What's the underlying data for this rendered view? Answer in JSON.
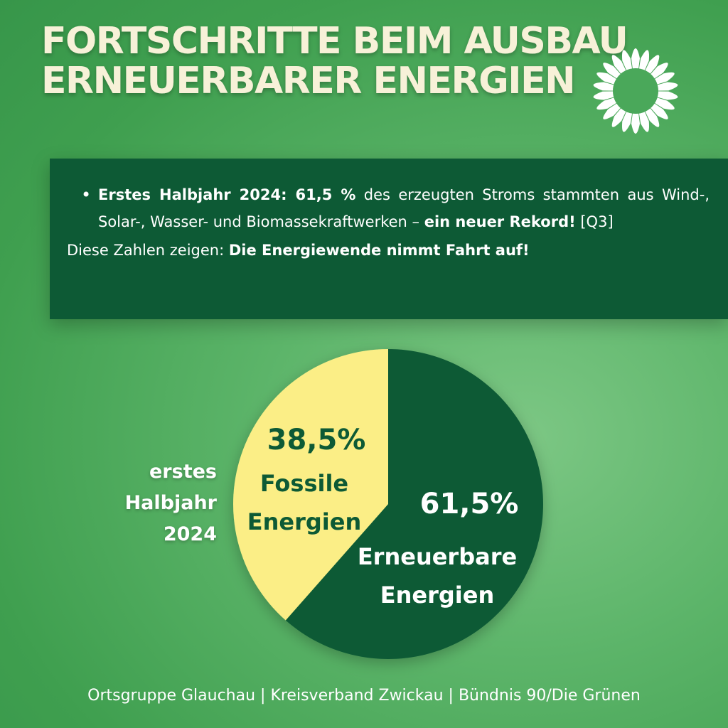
{
  "header": {
    "title_line1": "FORTSCHRITTE BEIM AUSBAU",
    "title_line2": "ERNEUERBARER ENERGIEN",
    "logo_icon": "sunflower-logo-icon"
  },
  "info": {
    "bullet_lead": "Erstes Halbjahr 2024: 61,5 %",
    "bullet_text": " des erzeugten Stroms stammten aus Wind-, Solar-, Wasser- und Biomassekraftwerken – ",
    "bullet_emphasis": "ein neuer Rekord!",
    "bullet_ref": " [Q3]",
    "conclusion_lead": "Diese Zahlen zeigen: ",
    "conclusion_emphasis": "Die Energiewende nimmt Fahrt auf!"
  },
  "chart_data": {
    "type": "pie",
    "period_label_lines": [
      "erstes",
      "Halbjahr",
      "2024"
    ],
    "slices": [
      {
        "label_lines": [
          "Erneuerbare",
          "Energien"
        ],
        "value": 61.5,
        "value_label": "61,5%",
        "color": "#0d5a35",
        "text_color": "#ffffff"
      },
      {
        "label_lines": [
          "Fossile",
          "Energien"
        ],
        "value": 38.5,
        "value_label": "38,5%",
        "color": "#fbee86",
        "text_color": "#0d5a35"
      }
    ]
  },
  "footer": {
    "text": "Ortsgruppe Glauchau | Kreisverband Zwickau | Bündnis 90/Die Grünen"
  },
  "colors": {
    "background": "#4fae5e",
    "dark_green": "#0d5a35",
    "yellow": "#fbee86",
    "title": "#f7f1d8"
  }
}
